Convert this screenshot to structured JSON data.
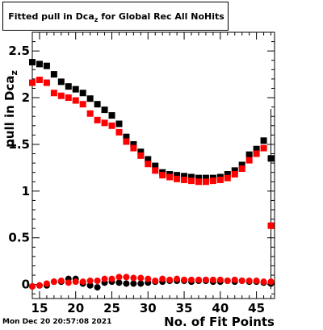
{
  "title": "Fitted pull in Dca",
  "title_sub": "z",
  "title_rest": " for Global Rec All NoHits",
  "footer": "Mon Dec 20 20:57:08 2021",
  "chart_data": {
    "type": "scatter",
    "xlabel": "No. of Fit Points",
    "ylabel": "pull in Dca",
    "ylabel_sub": "z",
    "xlim": [
      14,
      47.5
    ],
    "ylim": [
      -0.15,
      2.7
    ],
    "xticks": [
      15,
      20,
      25,
      30,
      35,
      40,
      45
    ],
    "yticks": [
      0,
      0.5,
      1,
      1.5,
      2,
      2.5
    ],
    "ytick_labels": [
      "0",
      "0.5",
      "1",
      "1.5",
      "2",
      "2.5"
    ],
    "series": [
      {
        "color": "#000000",
        "x": [
          14,
          15,
          16,
          17,
          18,
          19,
          20,
          21,
          22,
          23,
          24,
          25,
          26,
          27,
          28,
          29,
          30,
          31,
          32,
          33,
          34,
          35,
          36,
          37,
          38,
          39,
          40,
          41,
          42,
          43,
          44,
          45,
          46,
          47
        ],
        "y": [
          2.38,
          2.36,
          2.34,
          2.25,
          2.17,
          2.12,
          2.09,
          2.05,
          1.99,
          1.93,
          1.87,
          1.81,
          1.72,
          1.58,
          1.5,
          1.42,
          1.34,
          1.27,
          1.2,
          1.18,
          1.17,
          1.16,
          1.15,
          1.14,
          1.14,
          1.14,
          1.15,
          1.18,
          1.22,
          1.28,
          1.39,
          1.45,
          1.54,
          1.35
        ]
      },
      {
        "color": "#ff0000",
        "x": [
          14,
          15,
          16,
          17,
          18,
          19,
          20,
          21,
          22,
          23,
          24,
          25,
          26,
          27,
          28,
          29,
          30,
          31,
          32,
          33,
          34,
          35,
          36,
          37,
          38,
          39,
          40,
          41,
          42,
          43,
          44,
          45,
          46,
          47
        ],
        "y": [
          2.16,
          2.19,
          2.16,
          2.05,
          2.02,
          2.0,
          1.97,
          1.93,
          1.83,
          1.76,
          1.73,
          1.7,
          1.63,
          1.53,
          1.46,
          1.38,
          1.29,
          1.22,
          1.17,
          1.15,
          1.13,
          1.12,
          1.11,
          1.1,
          1.1,
          1.11,
          1.12,
          1.14,
          1.18,
          1.24,
          1.33,
          1.4,
          1.46,
          0.63
        ]
      },
      {
        "color": "#000000",
        "x": [
          14,
          15,
          16,
          17,
          18,
          19,
          20,
          21,
          22,
          23,
          24,
          25,
          26,
          27,
          28,
          29,
          30,
          31,
          32,
          33,
          34,
          35,
          36,
          37,
          38,
          39,
          40,
          41,
          42,
          43,
          44,
          45,
          46,
          47
        ],
        "y": [
          -0.02,
          -0.01,
          -0.01,
          0.03,
          0.03,
          0.06,
          0.06,
          0.01,
          -0.01,
          -0.03,
          0.02,
          0.03,
          0.02,
          0.01,
          0.01,
          0.01,
          0.02,
          0.03,
          0.03,
          0.04,
          0.04,
          0.04,
          0.03,
          0.04,
          0.04,
          0.03,
          0.03,
          0.04,
          0.03,
          0.04,
          0.03,
          0.03,
          0.02,
          0.01
        ]
      },
      {
        "color": "#ff0000",
        "x": [
          14,
          15,
          16,
          17,
          18,
          19,
          20,
          21,
          22,
          23,
          24,
          25,
          26,
          27,
          28,
          29,
          30,
          31,
          32,
          33,
          34,
          35,
          36,
          37,
          38,
          39,
          40,
          41,
          42,
          43,
          44,
          45,
          46,
          47
        ],
        "y": [
          -0.02,
          -0.01,
          0.01,
          0.03,
          0.04,
          0.02,
          0.03,
          0.03,
          0.04,
          0.04,
          0.06,
          0.06,
          0.08,
          0.08,
          0.07,
          0.07,
          0.06,
          0.04,
          0.06,
          0.05,
          0.06,
          0.05,
          0.05,
          0.05,
          0.05,
          0.05,
          0.05,
          0.04,
          0.05,
          0.04,
          0.04,
          0.04,
          0.03,
          0.03
        ]
      }
    ],
    "error_bars": [
      {
        "x": 47,
        "y_low": 0.02,
        "y_high": 1.18,
        "color": "#ff0000"
      },
      {
        "x": 47,
        "y_low": -0.05,
        "y_high": 1.88,
        "color": "#000000"
      }
    ]
  }
}
